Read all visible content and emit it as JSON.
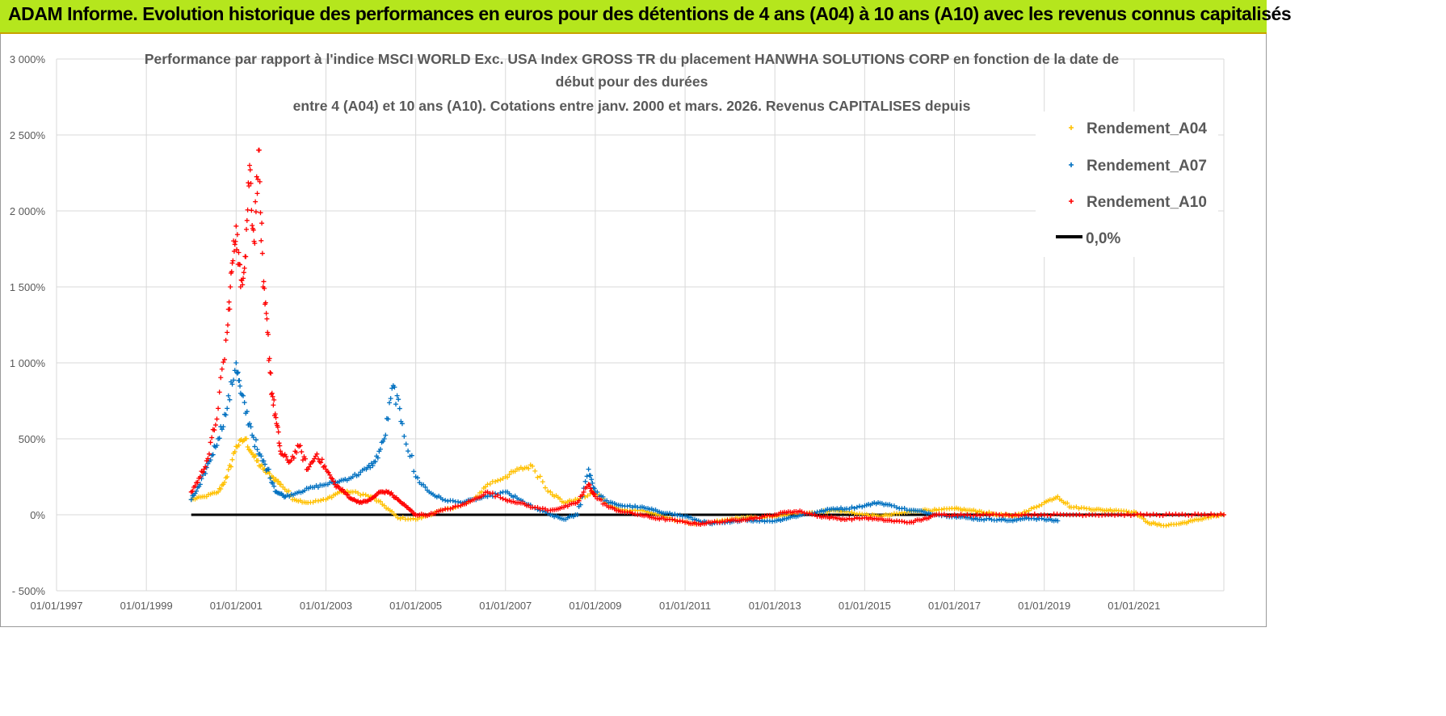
{
  "header": {
    "title": "ADAM Informe. Evolution historique des performances en euros pour des détentions de 4 ans (A04) à 10 ans (A10) avec les revenus connus capitalisés"
  },
  "chart_data": {
    "type": "scatter",
    "title_lines": [
      "Performance par rapport à l'indice MSCI WORLD Exc. USA Index GROSS TR  du placement HANWHA SOLUTIONS CORP en fonction de la date de",
      "début pour des durées",
      "entre 4 (A04) et 10 ans (A10). Cotations entre janv. 2000 et mars. 2026. Revenus CAPITALISES depuis"
    ],
    "x_unit": "year",
    "xlim": [
      1997.0,
      2023.0
    ],
    "ylim": [
      -500,
      3000
    ],
    "y_ticks": [
      -500,
      0,
      500,
      1000,
      1500,
      2000,
      2500,
      3000
    ],
    "y_tick_labels": [
      "- 500%",
      "0%",
      "500%",
      "1 000%",
      "1 500%",
      "2 000%",
      "2 500%",
      "3 000%"
    ],
    "x_ticks": [
      1997,
      1999,
      2001,
      2003,
      2005,
      2007,
      2009,
      2011,
      2013,
      2015,
      2017,
      2019,
      2021
    ],
    "x_tick_labels": [
      "01/01/1997",
      "01/01/1999",
      "01/01/2001",
      "01/01/2003",
      "01/01/2005",
      "01/01/2007",
      "01/01/2009",
      "01/01/2011",
      "01/01/2013",
      "01/01/2015",
      "01/01/2017",
      "01/01/2019",
      "01/01/2021"
    ],
    "legend": [
      "Rendement_A04",
      "Rendement_A07",
      "Rendement_A10",
      "0,0%"
    ],
    "legend_position": "top-right",
    "colors": {
      "A04": "#ffc000",
      "A07": "#0070c0",
      "A10": "#ff0000",
      "zero": "#000000",
      "grid": "#d9d9d9",
      "axis_text": "#595959"
    },
    "zero_line": {
      "x": [
        2000.0,
        2023.0
      ],
      "y": 0
    },
    "series": [
      {
        "name": "Rendement_A04",
        "key": "A04",
        "x": [
          2000.0,
          2000.3,
          2000.6,
          2000.8,
          2001.0,
          2001.2,
          2001.4,
          2001.6,
          2001.8,
          2002.0,
          2002.3,
          2002.6,
          2003.0,
          2003.3,
          2003.6,
          2004.0,
          2004.3,
          2004.6,
          2005.0,
          2005.3,
          2005.6,
          2006.0,
          2006.3,
          2006.6,
          2007.0,
          2007.3,
          2007.6,
          2008.0,
          2008.3,
          2008.6,
          2009.0,
          2009.3,
          2009.6,
          2010.0,
          2010.3,
          2010.6,
          2011.0,
          2011.3,
          2011.6,
          2012.0,
          2012.3,
          2012.6,
          2013.0,
          2013.3,
          2013.6,
          2014.0,
          2014.3,
          2014.6,
          2015.0,
          2015.3,
          2015.6,
          2016.0,
          2016.3,
          2016.6,
          2017.0,
          2017.3,
          2017.6,
          2018.0,
          2018.3,
          2018.6,
          2019.0,
          2019.3,
          2019.6,
          2020.0,
          2020.3,
          2020.6,
          2021.0,
          2021.3,
          2021.6,
          2022.0,
          2022.3,
          2022.6,
          2023.0
        ],
        "y": [
          100,
          120,
          150,
          250,
          450,
          500,
          380,
          300,
          250,
          200,
          100,
          80,
          100,
          150,
          150,
          120,
          60,
          -20,
          -30,
          0,
          30,
          60,
          100,
          200,
          250,
          300,
          320,
          150,
          80,
          100,
          150,
          60,
          30,
          30,
          10,
          -20,
          -50,
          -60,
          -50,
          -30,
          -20,
          -20,
          -10,
          0,
          10,
          20,
          30,
          20,
          0,
          -10,
          0,
          20,
          30,
          30,
          40,
          30,
          20,
          0,
          -10,
          20,
          80,
          120,
          50,
          40,
          30,
          30,
          20,
          -50,
          -70,
          -60,
          -40,
          -20,
          0
        ]
      },
      {
        "name": "Rendement_A07",
        "key": "A07",
        "x": [
          2000.0,
          2000.2,
          2000.4,
          2000.6,
          2000.8,
          2001.0,
          2001.1,
          2001.3,
          2001.5,
          2001.7,
          2001.9,
          2002.1,
          2002.4,
          2002.7,
          2003.0,
          2003.3,
          2003.6,
          2003.9,
          2004.1,
          2004.3,
          2004.5,
          2004.7,
          2005.0,
          2005.3,
          2005.6,
          2006.0,
          2006.3,
          2006.6,
          2007.0,
          2007.3,
          2007.6,
          2008.0,
          2008.3,
          2008.6,
          2008.85,
          2009.0,
          2009.3,
          2009.6,
          2010.0,
          2010.3,
          2010.6,
          2011.0,
          2011.3,
          2011.6,
          2012.0,
          2012.3,
          2012.6,
          2013.0,
          2013.3,
          2013.6,
          2014.0,
          2014.3,
          2014.6,
          2015.0,
          2015.3,
          2015.6,
          2016.0,
          2016.3,
          2016.6,
          2017.0,
          2017.3,
          2017.6,
          2018.0,
          2018.3,
          2018.6,
          2019.0,
          2019.3
        ],
        "y": [
          100,
          200,
          350,
          500,
          700,
          1000,
          800,
          600,
          400,
          300,
          150,
          120,
          150,
          180,
          200,
          220,
          250,
          300,
          350,
          500,
          850,
          600,
          250,
          150,
          100,
          80,
          100,
          120,
          150,
          100,
          50,
          0,
          -30,
          0,
          300,
          150,
          80,
          60,
          50,
          30,
          10,
          -10,
          -40,
          -60,
          -50,
          -30,
          -40,
          -40,
          -20,
          0,
          20,
          40,
          40,
          60,
          80,
          60,
          30,
          20,
          0,
          -10,
          -20,
          -30,
          -30,
          -40,
          -20,
          -30,
          -40
        ]
      },
      {
        "name": "Rendement_A10",
        "key": "A10",
        "x": [
          2000.0,
          2000.2,
          2000.4,
          2000.6,
          2000.8,
          2000.9,
          2001.0,
          2001.1,
          2001.2,
          2001.3,
          2001.4,
          2001.5,
          2001.6,
          2001.7,
          2001.8,
          2001.9,
          2002.0,
          2002.2,
          2002.4,
          2002.6,
          2002.8,
          2003.0,
          2003.2,
          2003.4,
          2003.6,
          2003.8,
          2004.0,
          2004.2,
          2004.4,
          2004.6,
          2004.8,
          2005.0,
          2005.3,
          2005.6,
          2006.0,
          2006.3,
          2006.6,
          2007.0,
          2007.3,
          2007.6,
          2008.0,
          2008.3,
          2008.6,
          2008.85,
          2009.0,
          2009.3,
          2009.6,
          2010.0,
          2010.3,
          2010.6,
          2011.0,
          2011.3,
          2011.6,
          2012.0,
          2012.3,
          2012.6,
          2013.0,
          2013.3,
          2013.6,
          2014.0,
          2014.3,
          2014.6,
          2015.0,
          2015.3,
          2015.6,
          2016.0,
          2016.3,
          2016.6,
          2017.0,
          2017.5,
          2018.0,
          2018.5,
          2019.0,
          2019.5,
          2020.0,
          2020.5,
          2021.0,
          2021.5,
          2022.0,
          2022.5,
          2023.0
        ],
        "y": [
          150,
          250,
          400,
          700,
          1200,
          1600,
          1900,
          1500,
          1700,
          2300,
          1800,
          2400,
          1500,
          1200,
          800,
          600,
          400,
          350,
          450,
          300,
          400,
          300,
          200,
          150,
          100,
          80,
          100,
          150,
          150,
          100,
          50,
          0,
          0,
          30,
          60,
          100,
          150,
          100,
          80,
          50,
          30,
          50,
          80,
          200,
          120,
          50,
          20,
          0,
          -20,
          -30,
          -50,
          -60,
          -50,
          -40,
          -30,
          -20,
          0,
          20,
          20,
          -10,
          -20,
          -30,
          -20,
          -30,
          -40,
          -50,
          -30,
          0,
          0,
          0,
          0,
          0,
          0,
          0,
          0,
          0,
          0,
          0,
          0,
          0,
          0
        ]
      }
    ]
  }
}
